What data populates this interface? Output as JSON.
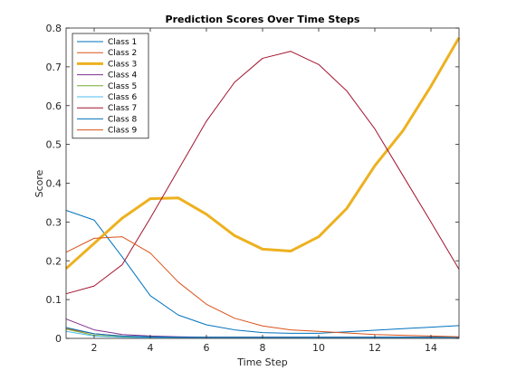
{
  "chart_data": {
    "type": "line",
    "title": "Prediction Scores Over Time Steps",
    "xlabel": "Time Step",
    "ylabel": "Score",
    "xlim": [
      1,
      15
    ],
    "ylim": [
      0,
      0.8
    ],
    "x_ticks": [
      2,
      4,
      6,
      8,
      10,
      12,
      14
    ],
    "y_ticks": [
      0,
      0.1,
      0.2,
      0.3,
      0.4,
      0.5,
      0.6,
      0.7,
      0.8
    ],
    "x_tick_labels": [
      "2",
      "4",
      "6",
      "8",
      "10",
      "12",
      "14"
    ],
    "y_tick_labels": [
      "0",
      "0.1",
      "0.2",
      "0.3",
      "0.4",
      "0.5",
      "0.6",
      "0.7",
      "0.8"
    ],
    "legend_position": "top-left",
    "grid": false,
    "x": [
      1,
      2,
      3,
      4,
      5,
      6,
      7,
      8,
      9,
      10,
      11,
      12,
      13,
      14,
      15
    ],
    "series": [
      {
        "name": "Class 1",
        "color": "#0072BD",
        "line_width": 1,
        "values": [
          0.33,
          0.305,
          0.21,
          0.11,
          0.06,
          0.035,
          0.022,
          0.015,
          0.013,
          0.013,
          0.017,
          0.021,
          0.025,
          0.029,
          0.033
        ]
      },
      {
        "name": "Class 2",
        "color": "#D95319",
        "line_width": 1,
        "values": [
          0.025,
          0.012,
          0.006,
          0.004,
          0.003,
          0.003,
          0.003,
          0.003,
          0.003,
          0.003,
          0.003,
          0.003,
          0.003,
          0.003,
          0.003
        ]
      },
      {
        "name": "Class 3",
        "color": "#EDB120",
        "line_width": 3,
        "values": [
          0.18,
          0.245,
          0.31,
          0.36,
          0.362,
          0.32,
          0.265,
          0.23,
          0.225,
          0.262,
          0.335,
          0.445,
          0.535,
          0.65,
          0.775
        ]
      },
      {
        "name": "Class 4",
        "color": "#7E2F8E",
        "line_width": 1,
        "values": [
          0.05,
          0.022,
          0.01,
          0.006,
          0.004,
          0.003,
          0.003,
          0.003,
          0.003,
          0.003,
          0.003,
          0.003,
          0.003,
          0.003,
          0.003
        ]
      },
      {
        "name": "Class 5",
        "color": "#77AC30",
        "line_width": 1,
        "values": [
          0.024,
          0.008,
          0.004,
          0.002,
          0.002,
          0.002,
          0.002,
          0.002,
          0.002,
          0.002,
          0.002,
          0.002,
          0.002,
          0.002,
          0.002
        ]
      },
      {
        "name": "Class 6",
        "color": "#4DBEEE",
        "line_width": 1,
        "values": [
          0.018,
          0.006,
          0.003,
          0.002,
          0.002,
          0.002,
          0.002,
          0.002,
          0.002,
          0.002,
          0.002,
          0.002,
          0.002,
          0.002,
          0.002
        ]
      },
      {
        "name": "Class 7",
        "color": "#A2142F",
        "line_width": 1,
        "values": [
          0.115,
          0.135,
          0.19,
          0.31,
          0.435,
          0.56,
          0.66,
          0.722,
          0.74,
          0.706,
          0.638,
          0.54,
          0.42,
          0.3,
          0.178
        ]
      },
      {
        "name": "Class 8",
        "color": "#0072BD",
        "line_width": 1,
        "values": [
          0.028,
          0.012,
          0.006,
          0.004,
          0.003,
          0.003,
          0.003,
          0.003,
          0.003,
          0.003,
          0.003,
          0.003,
          0.003,
          0.003,
          0.003
        ]
      },
      {
        "name": "Class 9",
        "color": "#D95319",
        "line_width": 1,
        "values": [
          0.222,
          0.258,
          0.262,
          0.22,
          0.145,
          0.088,
          0.052,
          0.032,
          0.022,
          0.018,
          0.014,
          0.01,
          0.008,
          0.006,
          0.004
        ]
      }
    ]
  }
}
